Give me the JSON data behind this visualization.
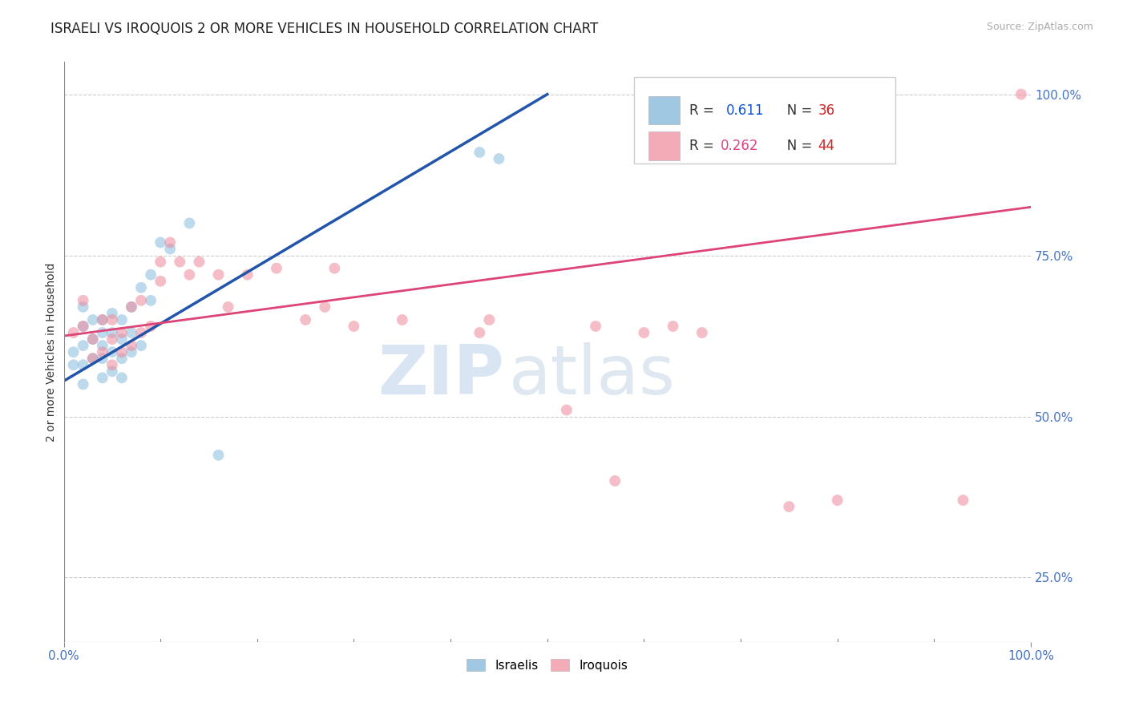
{
  "title": "ISRAELI VS IROQUOIS 2 OR MORE VEHICLES IN HOUSEHOLD CORRELATION CHART",
  "source_text": "Source: ZipAtlas.com",
  "ylabel": "2 or more Vehicles in Household",
  "legend_entries": [
    {
      "label": "Israelis",
      "color": "#a8c8e8",
      "R": "0.611",
      "N": "36"
    },
    {
      "label": "Iroquois",
      "color": "#f4a8b8",
      "R": "0.262",
      "N": "44"
    }
  ],
  "blue_scatter_x": [
    0.01,
    0.01,
    0.02,
    0.02,
    0.02,
    0.02,
    0.02,
    0.03,
    0.03,
    0.03,
    0.04,
    0.04,
    0.04,
    0.04,
    0.04,
    0.05,
    0.05,
    0.05,
    0.05,
    0.06,
    0.06,
    0.06,
    0.06,
    0.07,
    0.07,
    0.07,
    0.08,
    0.08,
    0.09,
    0.09,
    0.1,
    0.11,
    0.13,
    0.16,
    0.43,
    0.45
  ],
  "blue_scatter_y": [
    0.58,
    0.6,
    0.55,
    0.58,
    0.61,
    0.64,
    0.67,
    0.59,
    0.62,
    0.65,
    0.56,
    0.59,
    0.61,
    0.63,
    0.65,
    0.57,
    0.6,
    0.63,
    0.66,
    0.56,
    0.59,
    0.62,
    0.65,
    0.6,
    0.63,
    0.67,
    0.61,
    0.7,
    0.68,
    0.72,
    0.77,
    0.76,
    0.8,
    0.44,
    0.91,
    0.9
  ],
  "pink_scatter_x": [
    0.01,
    0.02,
    0.02,
    0.03,
    0.03,
    0.04,
    0.04,
    0.05,
    0.05,
    0.05,
    0.06,
    0.06,
    0.07,
    0.07,
    0.08,
    0.08,
    0.09,
    0.1,
    0.1,
    0.11,
    0.12,
    0.13,
    0.14,
    0.16,
    0.17,
    0.19,
    0.22,
    0.25,
    0.27,
    0.28,
    0.3,
    0.35,
    0.43,
    0.44,
    0.52,
    0.55,
    0.57,
    0.6,
    0.63,
    0.66,
    0.75,
    0.8,
    0.93,
    0.99
  ],
  "pink_scatter_y": [
    0.63,
    0.64,
    0.68,
    0.59,
    0.62,
    0.6,
    0.65,
    0.58,
    0.62,
    0.65,
    0.6,
    0.63,
    0.61,
    0.67,
    0.63,
    0.68,
    0.64,
    0.71,
    0.74,
    0.77,
    0.74,
    0.72,
    0.74,
    0.72,
    0.67,
    0.72,
    0.73,
    0.65,
    0.67,
    0.73,
    0.64,
    0.65,
    0.63,
    0.65,
    0.51,
    0.64,
    0.4,
    0.63,
    0.64,
    0.63,
    0.36,
    0.37,
    0.37,
    1.0
  ],
  "blue_line_x": [
    0.0,
    0.5
  ],
  "blue_line_y": [
    0.555,
    1.0
  ],
  "pink_line_x": [
    0.0,
    1.0
  ],
  "pink_line_y": [
    0.625,
    0.825
  ],
  "xlim": [
    0.0,
    1.0
  ],
  "ylim": [
    0.15,
    1.05
  ],
  "grid_color": "#cccccc",
  "background_color": "#ffffff",
  "scatter_size": 100,
  "scatter_alpha": 0.55,
  "blue_color": "#88bbdd",
  "pink_color": "#ee8899",
  "blue_line_color": "#2255aa",
  "pink_line_color": "#dd4477",
  "watermark_zip": "ZIP",
  "watermark_atlas": "atlas",
  "title_fontsize": 12,
  "axis_label_fontsize": 10,
  "tick_label_fontsize": 11,
  "right_tick_color": "#4472c4",
  "legend_R_blue_color": "#1155cc",
  "legend_N_blue_color": "#cc2222",
  "legend_R_pink_color": "#dd4488",
  "legend_N_pink_color": "#cc2222"
}
